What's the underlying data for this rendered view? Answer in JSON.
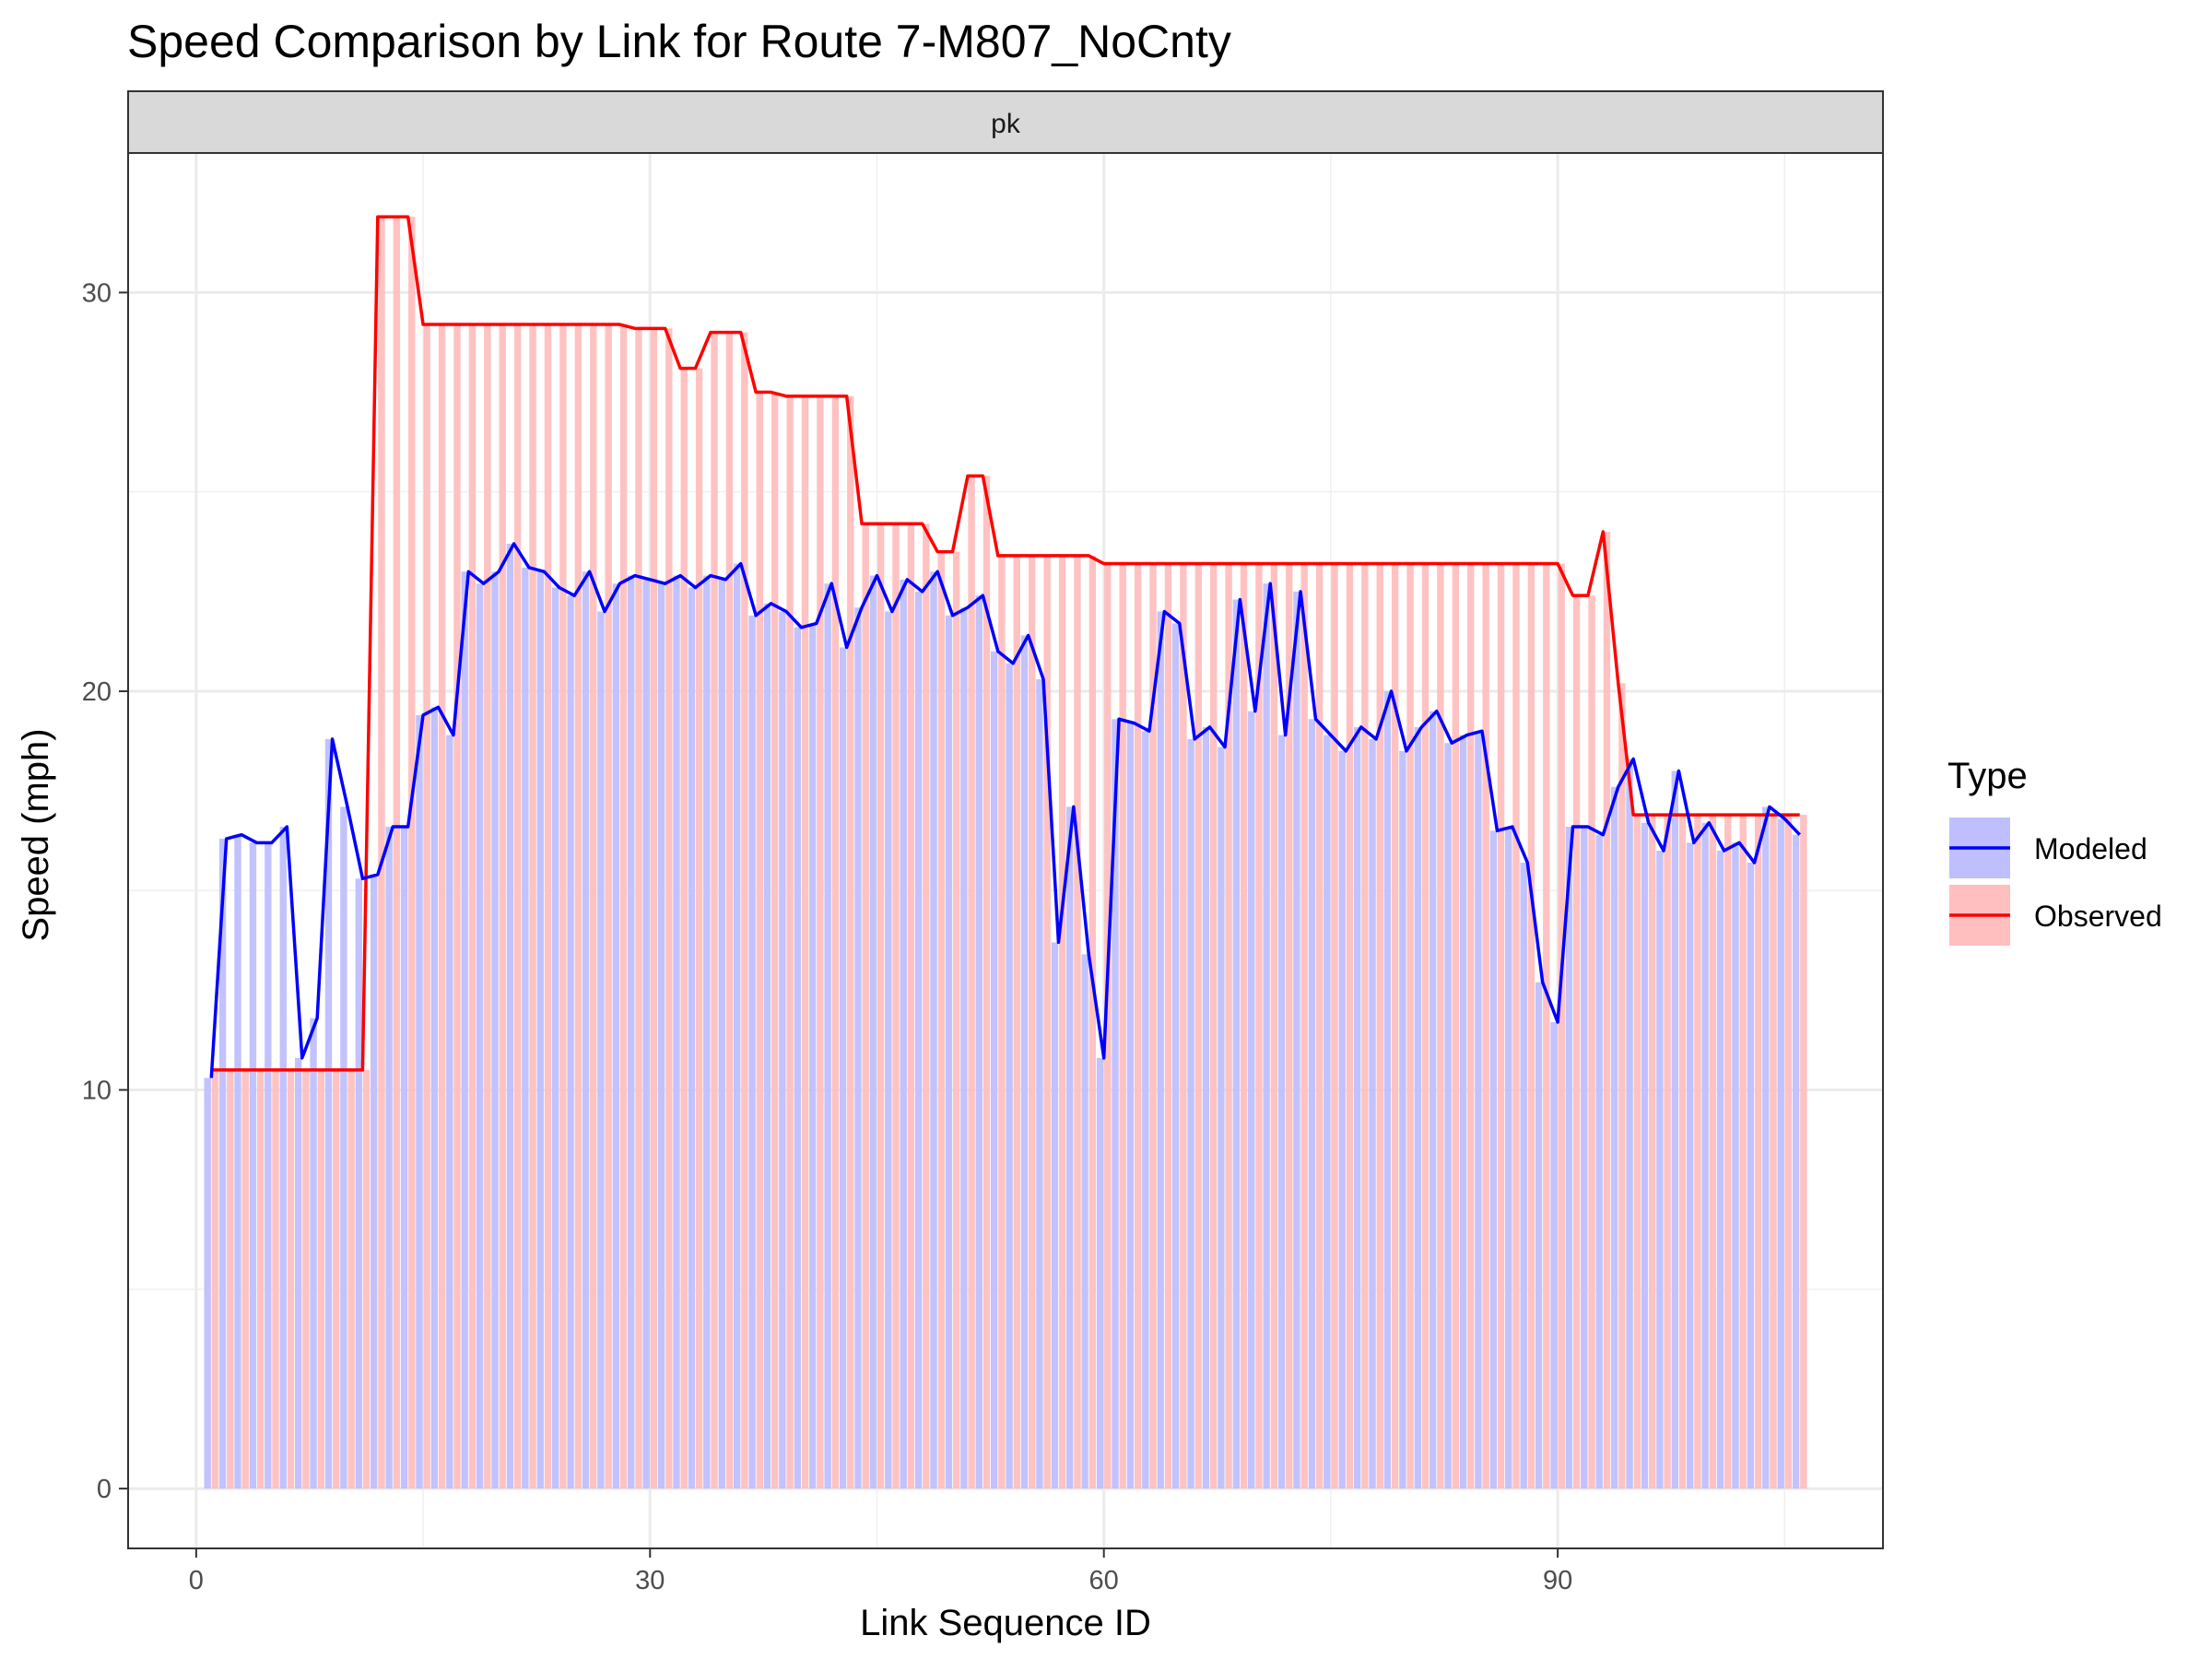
{
  "chart_data": {
    "type": "line",
    "title": "Speed Comparison by Link for Route 7-M807_NoCnty",
    "facet": "pk",
    "xlabel": "Link Sequence ID",
    "ylabel": "Speed (mph)",
    "xlim": [
      -4.5,
      111.5
    ],
    "ylim": [
      -1.5,
      33.5
    ],
    "x_ticks": [
      0,
      30,
      60,
      90
    ],
    "y_ticks": [
      0,
      10,
      20,
      30
    ],
    "grid": true,
    "legend": {
      "title": "Type",
      "position": "right"
    },
    "series": [
      {
        "name": "Modeled",
        "color": "#0000ff",
        "fill": "#bfbfff",
        "values": [
          10.3,
          16.3,
          16.4,
          16.2,
          16.2,
          16.6,
          10.8,
          11.8,
          18.8,
          17.1,
          15.3,
          15.4,
          16.6,
          16.6,
          19.4,
          19.6,
          18.9,
          23.0,
          22.7,
          23.0,
          23.7,
          23.1,
          23.0,
          22.6,
          22.4,
          23.0,
          22.0,
          22.7,
          22.9,
          22.8,
          22.7,
          22.9,
          22.6,
          22.9,
          22.8,
          23.2,
          21.9,
          22.2,
          22.0,
          21.6,
          21.7,
          22.7,
          21.1,
          22.1,
          22.9,
          22.0,
          22.8,
          22.5,
          23.0,
          21.9,
          22.1,
          22.4,
          21.0,
          20.7,
          21.4,
          20.3,
          13.7,
          17.1,
          13.4,
          10.8,
          19.3,
          19.2,
          19.0,
          22.0,
          21.7,
          18.8,
          19.1,
          18.6,
          22.3,
          19.5,
          22.7,
          18.9,
          22.5,
          19.3,
          18.9,
          18.5,
          19.1,
          18.8,
          20.0,
          18.5,
          19.1,
          19.5,
          18.7,
          18.9,
          19.0,
          16.5,
          16.6,
          15.7,
          12.7,
          11.7,
          16.6,
          16.6,
          16.4,
          17.6,
          18.3,
          16.7,
          16.0,
          18.0,
          16.2,
          16.7,
          16.0,
          16.2,
          15.7,
          17.1,
          16.8,
          16.4
        ]
      },
      {
        "name": "Observed",
        "color": "#ff0000",
        "fill": "#ffbfbf",
        "values": [
          10.5,
          10.5,
          10.5,
          10.5,
          10.5,
          10.5,
          10.5,
          10.5,
          10.5,
          10.5,
          10.5,
          31.9,
          31.9,
          31.9,
          29.2,
          29.2,
          29.2,
          29.2,
          29.2,
          29.2,
          29.2,
          29.2,
          29.2,
          29.2,
          29.2,
          29.2,
          29.2,
          29.2,
          29.1,
          29.1,
          29.1,
          28.1,
          28.1,
          29.0,
          29.0,
          29.0,
          27.5,
          27.5,
          27.4,
          27.4,
          27.4,
          27.4,
          27.4,
          24.2,
          24.2,
          24.2,
          24.2,
          24.2,
          23.5,
          23.5,
          25.4,
          25.4,
          23.4,
          23.4,
          23.4,
          23.4,
          23.4,
          23.4,
          23.4,
          23.2,
          23.2,
          23.2,
          23.2,
          23.2,
          23.2,
          23.2,
          23.2,
          23.2,
          23.2,
          23.2,
          23.2,
          23.2,
          23.2,
          23.2,
          23.2,
          23.2,
          23.2,
          23.2,
          23.2,
          23.2,
          23.2,
          23.2,
          23.2,
          23.2,
          23.2,
          23.2,
          23.2,
          23.2,
          23.2,
          23.2,
          22.4,
          22.4,
          24.0,
          20.2,
          16.9,
          16.9,
          16.9,
          16.9,
          16.9,
          16.9,
          16.9,
          16.9,
          16.9,
          16.9,
          16.9,
          16.9
        ]
      }
    ]
  }
}
